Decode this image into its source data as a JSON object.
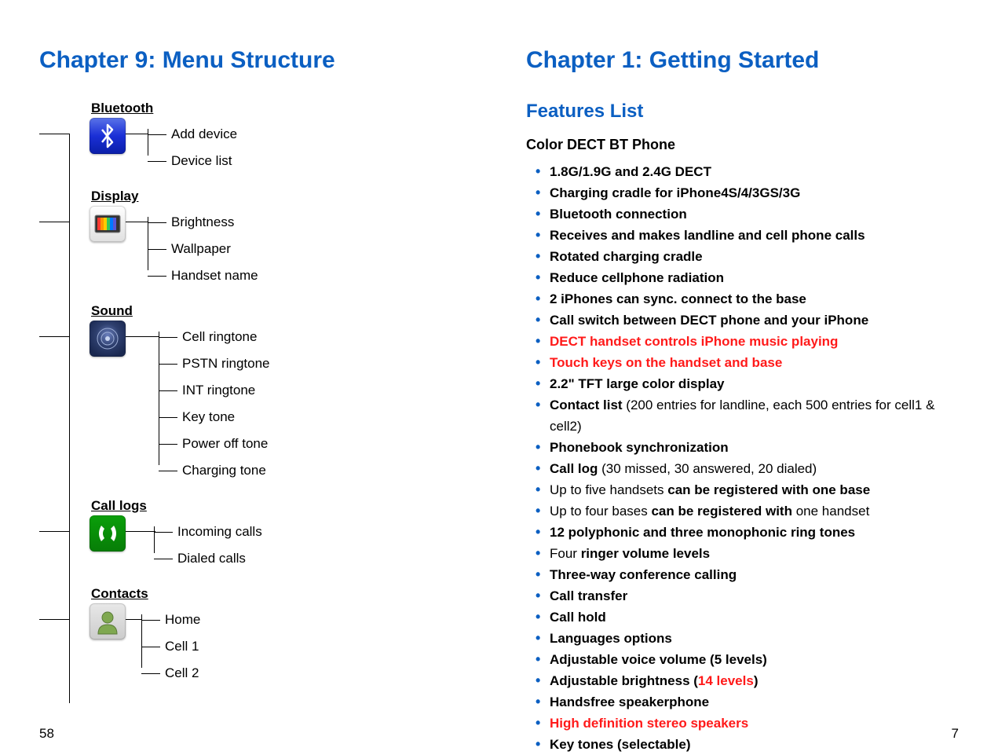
{
  "left": {
    "chapter_title": "Chapter 9: Menu Structure",
    "page_num": "58",
    "sections": [
      {
        "label": "Bluetooth",
        "icon": "bluetooth-icon",
        "items": [
          "Add device",
          "Device list"
        ]
      },
      {
        "label": "Display",
        "icon": "display-icon",
        "items": [
          "Brightness",
          "Wallpaper",
          "Handset name"
        ]
      },
      {
        "label": "Sound",
        "icon": "sound-icon",
        "items": [
          "Cell ringtone",
          "PSTN ringtone",
          "INT ringtone",
          "Key tone",
          "Power off tone",
          "Charging tone"
        ]
      },
      {
        "label": "Call logs",
        "icon": "calllogs-icon",
        "items": [
          "Incoming calls",
          "Dialed calls"
        ]
      },
      {
        "label": "Contacts",
        "icon": "contacts-icon",
        "items": [
          "Home",
          "Cell 1",
          "Cell 2"
        ]
      }
    ]
  },
  "right": {
    "chapter_title": "Chapter 1: Getting Started",
    "section_title": "Features List",
    "subtitle": "Color DECT BT Phone",
    "page_num": "7",
    "features": [
      {
        "text": "1.8G/1.9G and 2.4G DECT"
      },
      {
        "text": "Charging cradle for iPhone4S/4/3GS/3G"
      },
      {
        "text": "Bluetooth connection"
      },
      {
        "text": "Receives and makes landline and cell phone calls"
      },
      {
        "text": "Rotated charging cradle"
      },
      {
        "text": "Reduce cellphone radiation"
      },
      {
        "text": "2 iPhones can sync. connect to the base"
      },
      {
        "text": "Call switch between DECT phone and your iPhone"
      },
      {
        "text": "DECT handset controls iPhone music playing",
        "red": true
      },
      {
        "text": "Touch keys on the handset and base",
        "red": true
      },
      {
        "text": "2.2\" TFT large color display"
      },
      {
        "prefix": "Contact list ",
        "suffix": "(200 entries for landline, each 500 entries for cell1 & cell2)"
      },
      {
        "text": "Phonebook synchronization"
      },
      {
        "prefix": "Call log ",
        "suffix": "(30 missed, 30 answered, 20 dialed)"
      },
      {
        "prefix_thin": "Up to five handsets ",
        "suffix_bold": "can be registered with one base"
      },
      {
        "prefix_thin": "Up to four bases ",
        "mid_bold": "can be registered with ",
        "suffix_thin": "one handset"
      },
      {
        "text": "12 polyphonic and three monophonic ring tones"
      },
      {
        "prefix_thin": "Four ",
        "suffix_bold": "ringer volume levels"
      },
      {
        "text": "Three-way conference calling"
      },
      {
        "text": "Call transfer"
      },
      {
        "text": "Call hold"
      },
      {
        "text": "Languages options"
      },
      {
        "text": "Adjustable voice volume (5 levels)"
      },
      {
        "prefix": "Adjustable brightness (",
        "red_mid": "14 levels",
        "suffix2": ")"
      },
      {
        "text": "Handsfree speakerphone",
        "bold": true
      },
      {
        "text": "High definition stereo speakers",
        "red": true
      },
      {
        "text": "Key tones (selectable)"
      }
    ]
  },
  "colors": {
    "accent": "#0b5fc2",
    "red": "#ff1a1a"
  }
}
